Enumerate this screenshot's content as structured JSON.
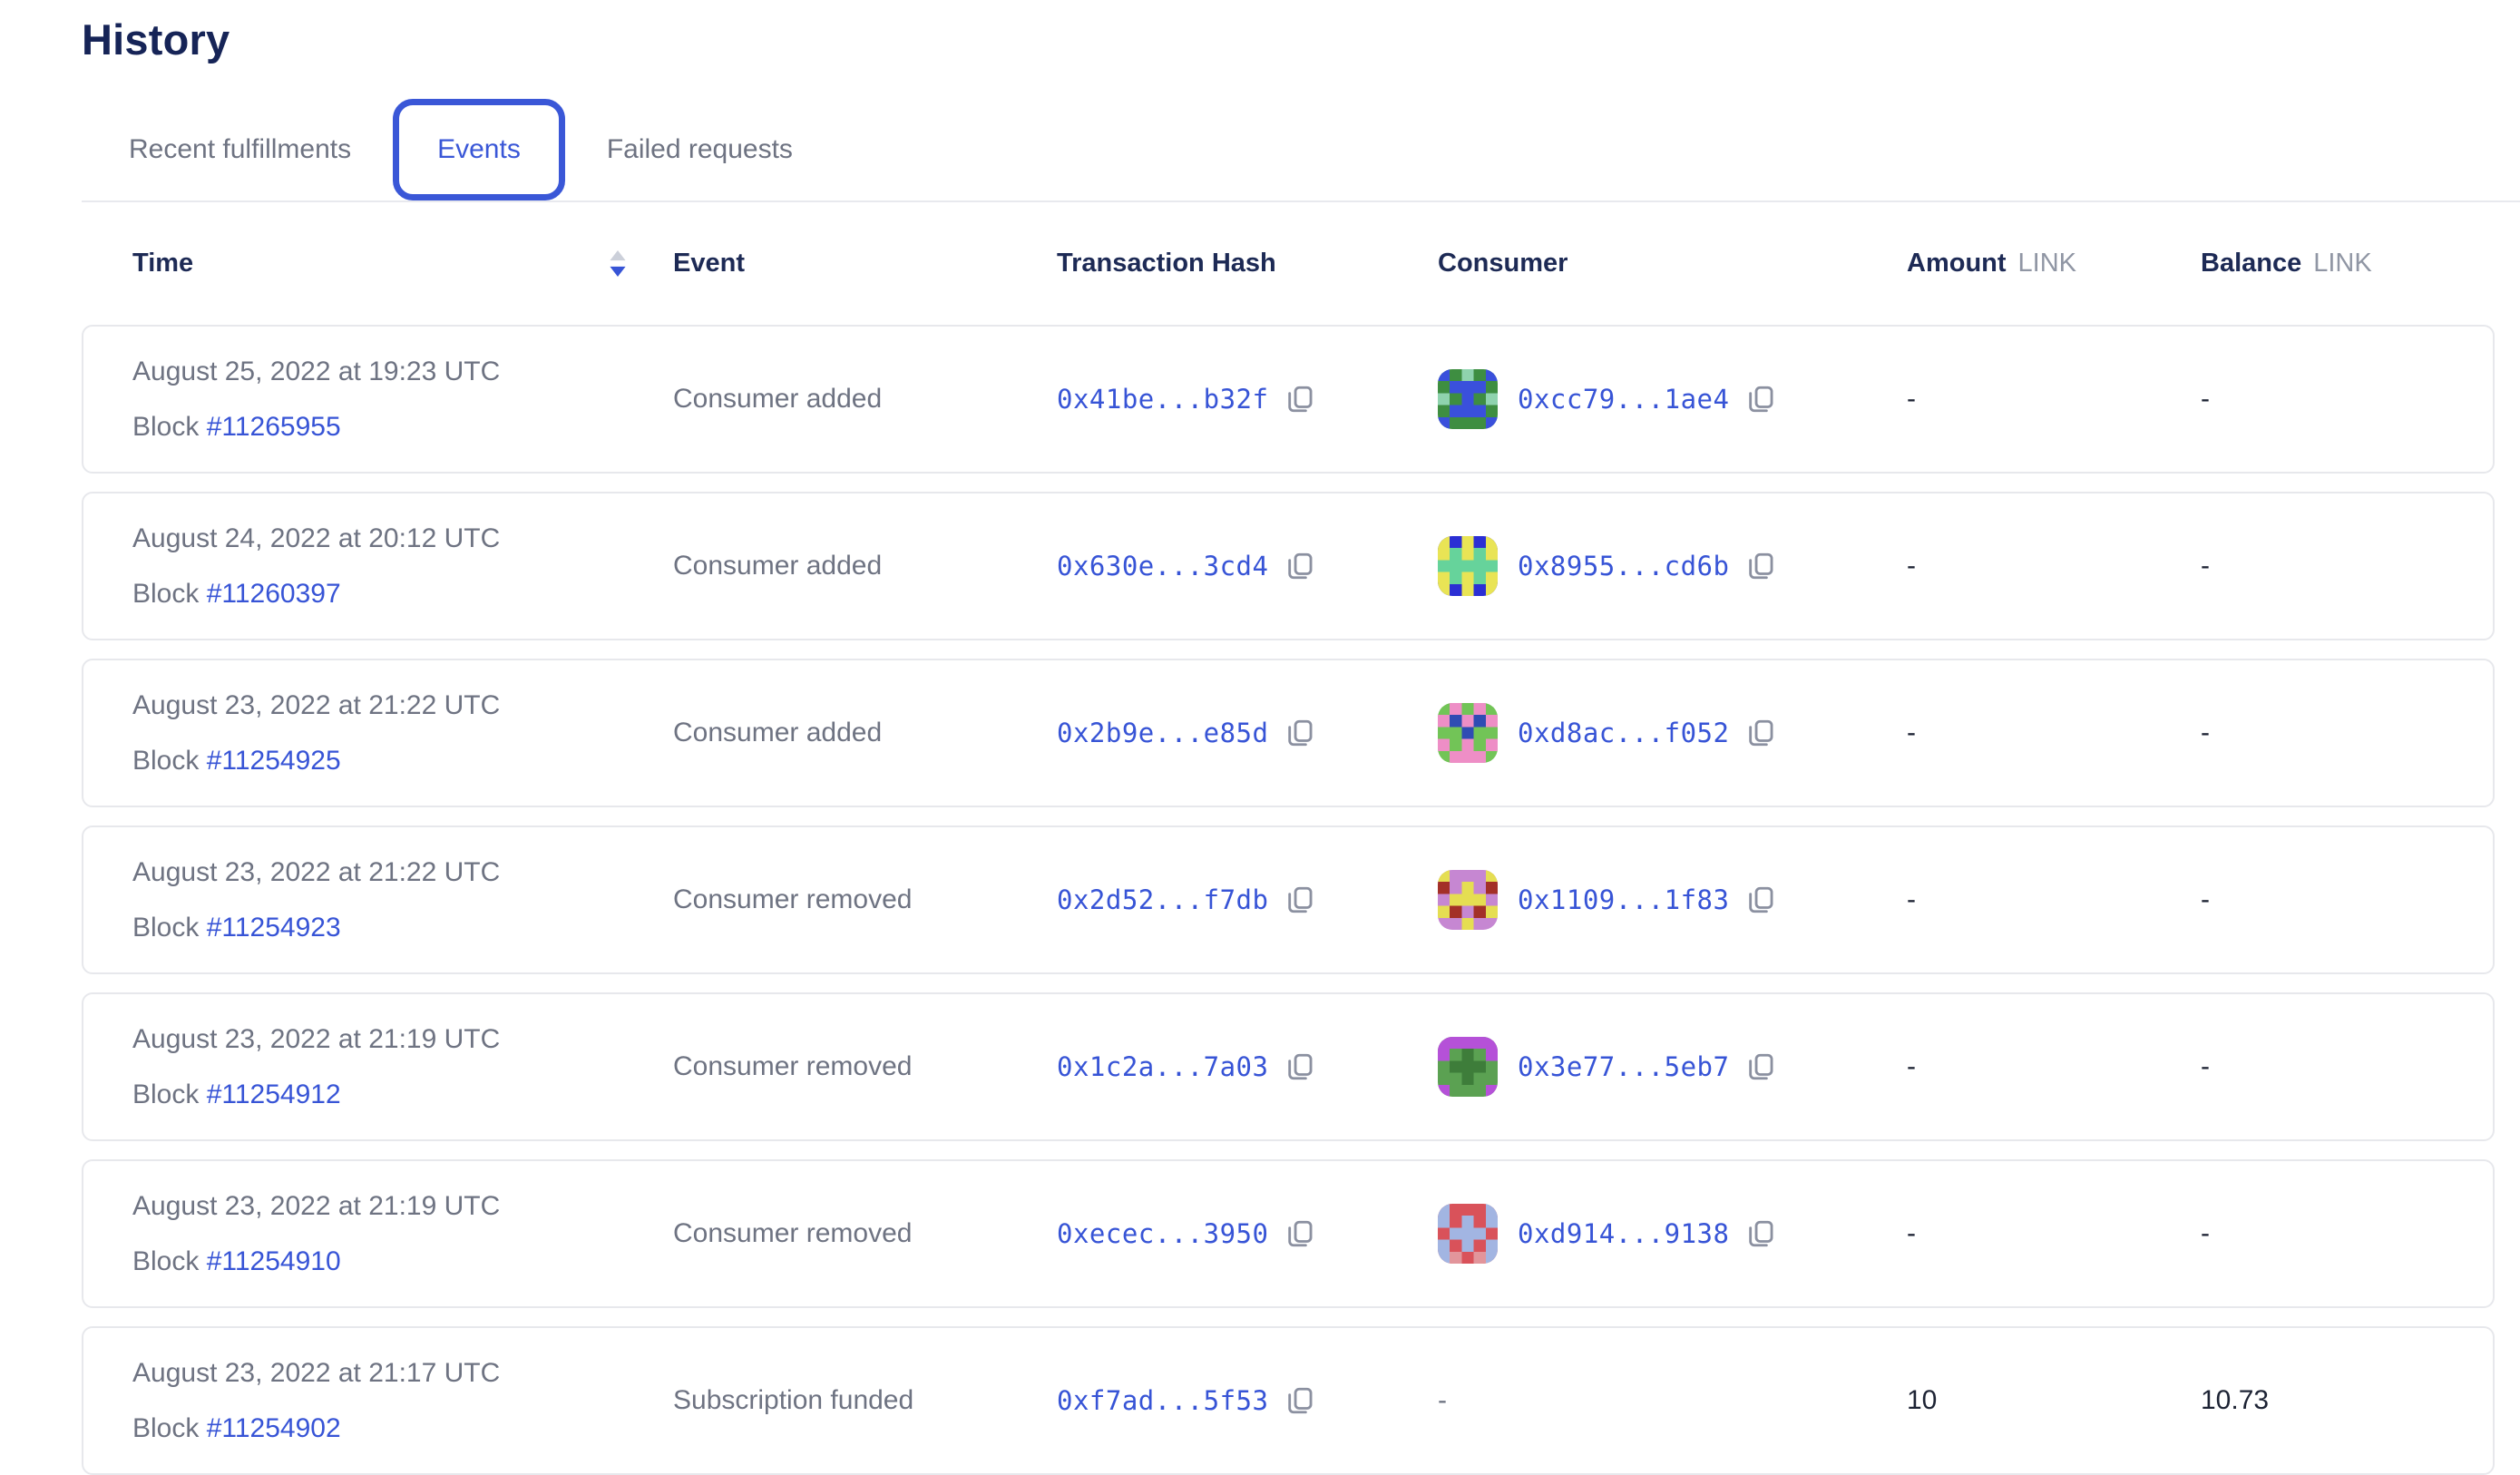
{
  "page": {
    "title": "History"
  },
  "tabs": [
    {
      "label": "Recent fulfillments",
      "active": false
    },
    {
      "label": "Events",
      "active": true
    },
    {
      "label": "Failed requests",
      "active": false
    }
  ],
  "table": {
    "columns": {
      "time": "Time",
      "event": "Event",
      "tx": "Transaction Hash",
      "consumer": "Consumer",
      "amount": "Amount",
      "amount_unit": "LINK",
      "balance": "Balance",
      "balance_unit": "LINK"
    },
    "sort": {
      "column": "Time",
      "direction": "descending"
    },
    "rows": [
      {
        "date": "August 25, 2022 at 19:23 UTC",
        "block_label": "Block",
        "block_number": "#11265955",
        "event": "Consumer added",
        "tx": "0x41be...b32f",
        "consumer": {
          "address": "0xcc79...1ae4",
          "avatar": {
            "bg": "#3e8e41",
            "fg": "#3a50dc",
            "accent": "#8fd3ae",
            "grid": [
              "f.a.f",
              ".fff.",
              "a.f.a",
              ".fff.",
              "f...f"
            ]
          }
        },
        "amount": "-",
        "balance": "-"
      },
      {
        "date": "August 24, 2022 at 20:12 UTC",
        "block_label": "Block",
        "block_number": "#11260397",
        "event": "Consumer added",
        "tx": "0x630e...3cd4",
        "consumer": {
          "address": "0x8955...cd6b",
          "avatar": {
            "bg": "#2b2fd4",
            "fg": "#e9e455",
            "accent": "#66d39b",
            "grid": [
              "f.f.f",
              "fafaf",
              "aaaaa",
              "fafaf",
              "f.f.f"
            ]
          }
        },
        "amount": "-",
        "balance": "-"
      },
      {
        "date": "August 23, 2022 at 21:22 UTC",
        "block_label": "Block",
        "block_number": "#11254925",
        "event": "Consumer added",
        "tx": "0x2b9e...e85d",
        "consumer": {
          "address": "0xd8ac...f052",
          "avatar": {
            "bg": "#72c457",
            "fg": "#ee8ec6",
            "accent": "#2f4cb3",
            "grid": [
              ".f.f.",
              "fafaf",
              "..a..",
              "f.f.f",
              ".fff."
            ]
          }
        },
        "amount": "-",
        "balance": "-"
      },
      {
        "date": "August 23, 2022 at 21:22 UTC",
        "block_label": "Block",
        "block_number": "#11254923",
        "event": "Consumer removed",
        "tx": "0x2d52...f7db",
        "consumer": {
          "address": "0x1109...1f83",
          "avatar": {
            "bg": "#c687d2",
            "fg": "#e5de52",
            "accent": "#a33028",
            "grid": [
              "f...f",
              "a.f.a",
              ".fff.",
              "fa.af",
              "..f.."
            ]
          }
        },
        "amount": "-",
        "balance": "-"
      },
      {
        "date": "August 23, 2022 at 21:19 UTC",
        "block_label": "Block",
        "block_number": "#11254912",
        "event": "Consumer removed",
        "tx": "0x1c2a...7a03",
        "consumer": {
          "address": "0x3e77...5eb7",
          "avatar": {
            "bg": "#5ba152",
            "fg": "#b551d8",
            "accent": "#3e7d3a",
            "grid": [
              "fffff",
              "f.a.f",
              ".aaa.",
              "..a..",
              "f...f"
            ]
          }
        },
        "amount": "-",
        "balance": "-"
      },
      {
        "date": "August 23, 2022 at 21:19 UTC",
        "block_label": "Block",
        "block_number": "#11254910",
        "event": "Consumer removed",
        "tx": "0xecec...3950",
        "consumer": {
          "address": "0xd914...9138",
          "avatar": {
            "bg": "#d9525a",
            "fg": "#a2b5e2",
            "accent": "#e2959b",
            "grid": [
              "f...f",
              "f.f.f",
              ".fff.",
              "f.f.f",
              "fa.af"
            ]
          }
        },
        "amount": "-",
        "balance": "-"
      },
      {
        "date": "August 23, 2022 at 21:17 UTC",
        "block_label": "Block",
        "block_number": "#11254902",
        "event": "Subscription funded",
        "tx": "0xf7ad...5f53",
        "consumer": {
          "address": "-",
          "avatar": null
        },
        "amount": "10",
        "balance": "10.73"
      }
    ]
  },
  "icons": {
    "sort": "sort-descending",
    "copy": "copy"
  },
  "colors": {
    "accent_blue": "#3754d6",
    "tab_border_blue": "#3a57d7",
    "heading_navy": "#162457",
    "header_navy": "#1d2a55",
    "text_gray": "#6e7382",
    "unit_gray": "#9096a4",
    "value_dark": "#1d2334",
    "card_border": "#e7e8ec"
  }
}
